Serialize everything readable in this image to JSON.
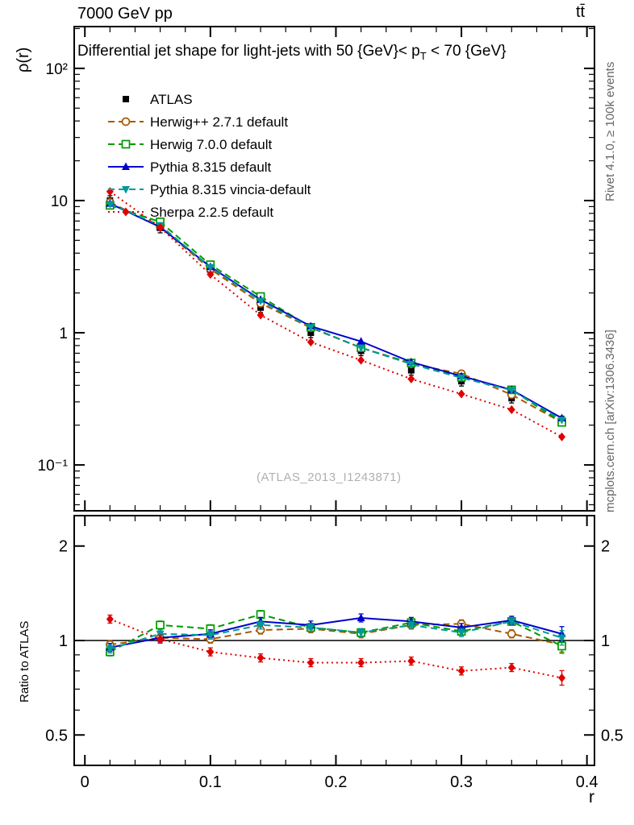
{
  "page": {
    "header_left": "7000 GeV pp",
    "header_right": "tt̄",
    "title_pre": "Differential jet shape for light-jets with 50 {GeV}< p",
    "title_sub": "T",
    "title_post": " < 70 {GeV}",
    "side_rivet": "Rivet 4.1.0, ≥ 100k events",
    "side_mcplots": "mcplots.cern.ch [arXiv:1306.3436]",
    "watermark": "(ATLAS_2013_I1243871)"
  },
  "chart_data": {
    "type": "line",
    "title": "Differential jet shape for light-jets with 50 {GeV}< pT < 70 {GeV}",
    "xlabel": "r",
    "x": [
      0.02,
      0.06,
      0.1,
      0.14,
      0.18,
      0.22,
      0.26,
      0.3,
      0.34,
      0.38
    ],
    "xlim": [
      -0.0085,
      0.406
    ],
    "x_major_ticks": {
      "values": [
        0,
        0.1,
        0.2,
        0.3,
        0.4
      ],
      "labels": [
        "0",
        "0.1",
        "0.2",
        "0.3",
        "0.4"
      ]
    },
    "x_minor_step": 0.02,
    "main_panel": {
      "ylabel": "ρ(r)",
      "yscale": "log",
      "ylim": [
        0.045,
        207
      ],
      "y_major_ticks": {
        "values": [
          100,
          10,
          1,
          0.1
        ],
        "labels": [
          "10²",
          "10",
          "1",
          "10⁻¹"
        ]
      }
    },
    "ratio_panel": {
      "ylabel": "Ratio to ATLAS",
      "yscale": "log",
      "ylim": [
        0.4,
        2.5
      ],
      "y_major_ticks": {
        "values": [
          2,
          1,
          0.5
        ],
        "labels": [
          "2",
          "1",
          "0.5"
        ]
      },
      "reference_line": 1.0
    },
    "legend_position": "top-left-inside",
    "series": [
      {
        "name": "ATLAS",
        "color": "#000000",
        "marker": "square",
        "line": "none",
        "values": [
          10.0,
          6.2,
          3.0,
          1.55,
          1.0,
          0.73,
          0.52,
          0.43,
          0.32,
          0.215
        ],
        "ratio": null
      },
      {
        "name": "Herwig++ 2.7.1 default",
        "color": "#a65800",
        "marker": "circle-open",
        "line": "dashed",
        "values": [
          9.7,
          6.3,
          3.03,
          1.67,
          1.09,
          0.77,
          0.58,
          0.49,
          0.34,
          0.21
        ],
        "ratio": [
          0.97,
          1.02,
          1.01,
          1.08,
          1.09,
          1.05,
          1.12,
          1.13,
          1.05,
          0.97
        ]
      },
      {
        "name": "Herwig 7.0.0 default",
        "color": "#009900",
        "marker": "square-open",
        "line": "dashed",
        "values": [
          9.2,
          6.9,
          3.27,
          1.88,
          1.1,
          0.77,
          0.59,
          0.46,
          0.37,
          0.21
        ],
        "ratio": [
          0.92,
          1.12,
          1.09,
          1.21,
          1.1,
          1.06,
          1.14,
          1.07,
          1.15,
          0.96
        ]
      },
      {
        "name": "Pythia 8.315 default",
        "color": "#0000cc",
        "marker": "triangle-up",
        "line": "solid",
        "values": [
          9.5,
          6.3,
          3.15,
          1.78,
          1.12,
          0.86,
          0.6,
          0.47,
          0.37,
          0.226
        ],
        "ratio": [
          0.95,
          1.02,
          1.05,
          1.15,
          1.12,
          1.18,
          1.15,
          1.1,
          1.16,
          1.05
        ]
      },
      {
        "name": "Pythia 8.315 vincia-default",
        "color": "#009999",
        "marker": "triangle-down",
        "line": "dashed",
        "values": [
          9.4,
          6.5,
          3.12,
          1.74,
          1.1,
          0.77,
          0.58,
          0.456,
          0.368,
          0.219
        ],
        "ratio": [
          0.94,
          1.05,
          1.04,
          1.12,
          1.1,
          1.06,
          1.12,
          1.06,
          1.15,
          1.02
        ]
      },
      {
        "name": "Sherpa 2.2.5 default",
        "color": "#e00000",
        "marker": "diamond",
        "line": "dotted",
        "values": [
          11.7,
          6.26,
          2.76,
          1.36,
          0.85,
          0.62,
          0.447,
          0.344,
          0.262,
          0.163
        ],
        "ratio": [
          1.17,
          1.01,
          0.92,
          0.88,
          0.85,
          0.85,
          0.86,
          0.8,
          0.82,
          0.76
        ]
      }
    ]
  }
}
